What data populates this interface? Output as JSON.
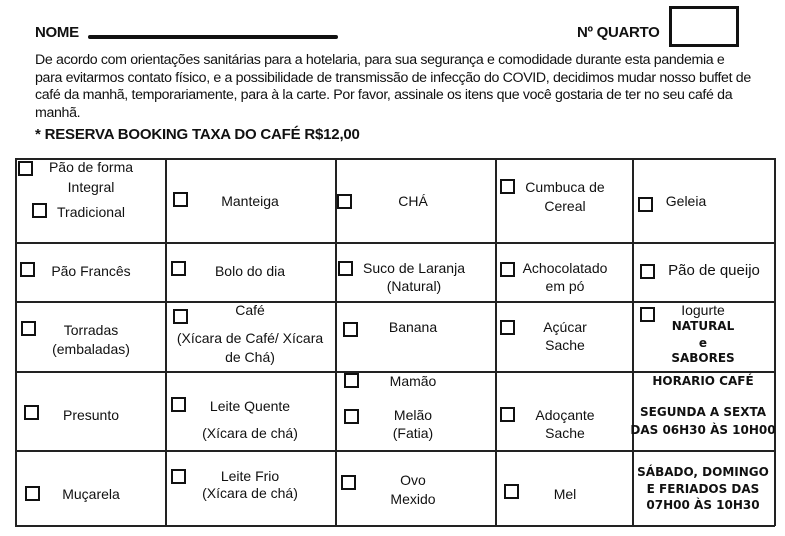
{
  "header": {
    "name_label": "NOME",
    "room_label": "Nº QUARTO",
    "intro": "De acordo com orientações sanitárias para a hotelaria, para sua segurança e comodidade durante esta pandemia e para evitarmos contato físico, e a possibilidade de transmissão de infecção do COVID, decidimos mudar nosso buffet de café da manhã, temporariamente, para à la carte. Por favor, assinale os itens que você gostaria de ter no seu café da manhã.",
    "fee": "* RESERVA BOOKING TAXA DO CAFÉ R$12,00"
  },
  "items": {
    "pao_forma": "Pão de forma",
    "integral": "Integral",
    "tradicional": "Tradicional",
    "manteiga": "Manteiga",
    "cha": "CHÁ",
    "cumbuca": [
      "Cumbuca de",
      "Cereal"
    ],
    "geleia": "Geleia",
    "pao_frances": "Pão Francês",
    "bolo": "Bolo do dia",
    "suco": [
      "Suco de Laranja",
      "(Natural)"
    ],
    "achocolatado": [
      "Achocolatado",
      "em pó"
    ],
    "pao_queijo": "Pão de queijo",
    "torradas": [
      "Torradas",
      "(embaladas)"
    ],
    "cafe": [
      "Café",
      "(Xícara de Café/ Xícara",
      "de Chá)"
    ],
    "banana": "Banana",
    "acucar": [
      "Açúcar",
      "Sache"
    ],
    "iogurte": [
      "Iogurte",
      "NATURAL",
      "e",
      "SABORES"
    ],
    "presunto": "Presunto",
    "leite_quente": [
      "Leite Quente",
      "(Xícara de chá)"
    ],
    "mamao": "Mamão",
    "melao": [
      "Melão",
      "(Fatia)"
    ],
    "adocante": [
      "Adoçante",
      "Sache"
    ],
    "mucarela": "Muçarela",
    "leite_frio": [
      "Leite Frio",
      "(Xícara de chá)"
    ],
    "ovo": [
      "Ovo",
      "Mexido"
    ],
    "mel": "Mel"
  },
  "schedule": {
    "title": "HORARIO CAFÉ",
    "weekdays": [
      "SEGUNDA A SEXTA",
      "DAS 06H30 ÀS 10H00"
    ],
    "weekend": [
      "SÁBADO, DOMINGO",
      "E FERIADOS DAS",
      "07H00 ÀS 10H30"
    ]
  }
}
